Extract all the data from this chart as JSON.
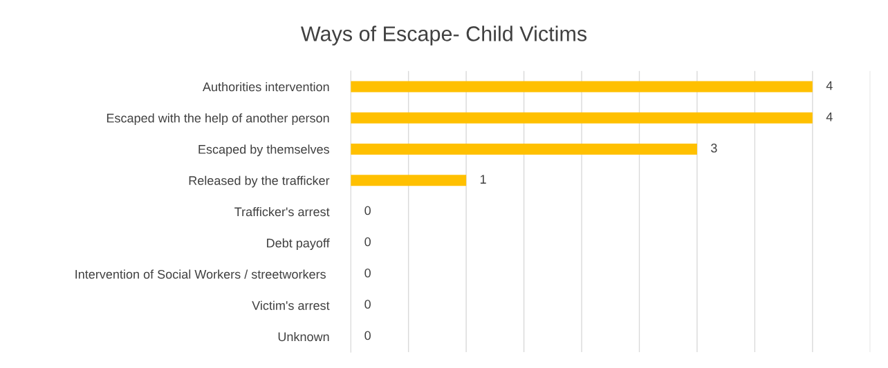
{
  "chart_data": {
    "type": "bar",
    "orientation": "horizontal",
    "title": "Ways of Escape- Child Victims",
    "categories": [
      "Authorities intervention",
      "Escaped with the help of another person",
      "Escaped by themselves",
      "Released by the trafficker",
      "Trafficker's arrest",
      "Debt payoff",
      "Intervention of Social Workers / streetworkers ",
      "Victim's arrest",
      "Unknown"
    ],
    "values": [
      4,
      4,
      3,
      1,
      0,
      0,
      0,
      0,
      0
    ],
    "color": "#ffc000",
    "xlim": [
      0,
      4.5
    ],
    "xticks": [
      {
        "value": 0,
        "label": null
      },
      {
        "value": 0.5,
        "label": null
      },
      {
        "value": 1,
        "label": null
      },
      {
        "value": 1.5,
        "label": null
      },
      {
        "value": 2,
        "label": null
      },
      {
        "value": 2.5,
        "label": null
      },
      {
        "value": 3,
        "label": null
      },
      {
        "value": 3.5,
        "label": null
      },
      {
        "value": 4,
        "label": null
      },
      {
        "value": 4.5,
        "label": null
      }
    ],
    "tick_labels": "y",
    "grid": "x",
    "data_labels": true,
    "legend": false
  }
}
